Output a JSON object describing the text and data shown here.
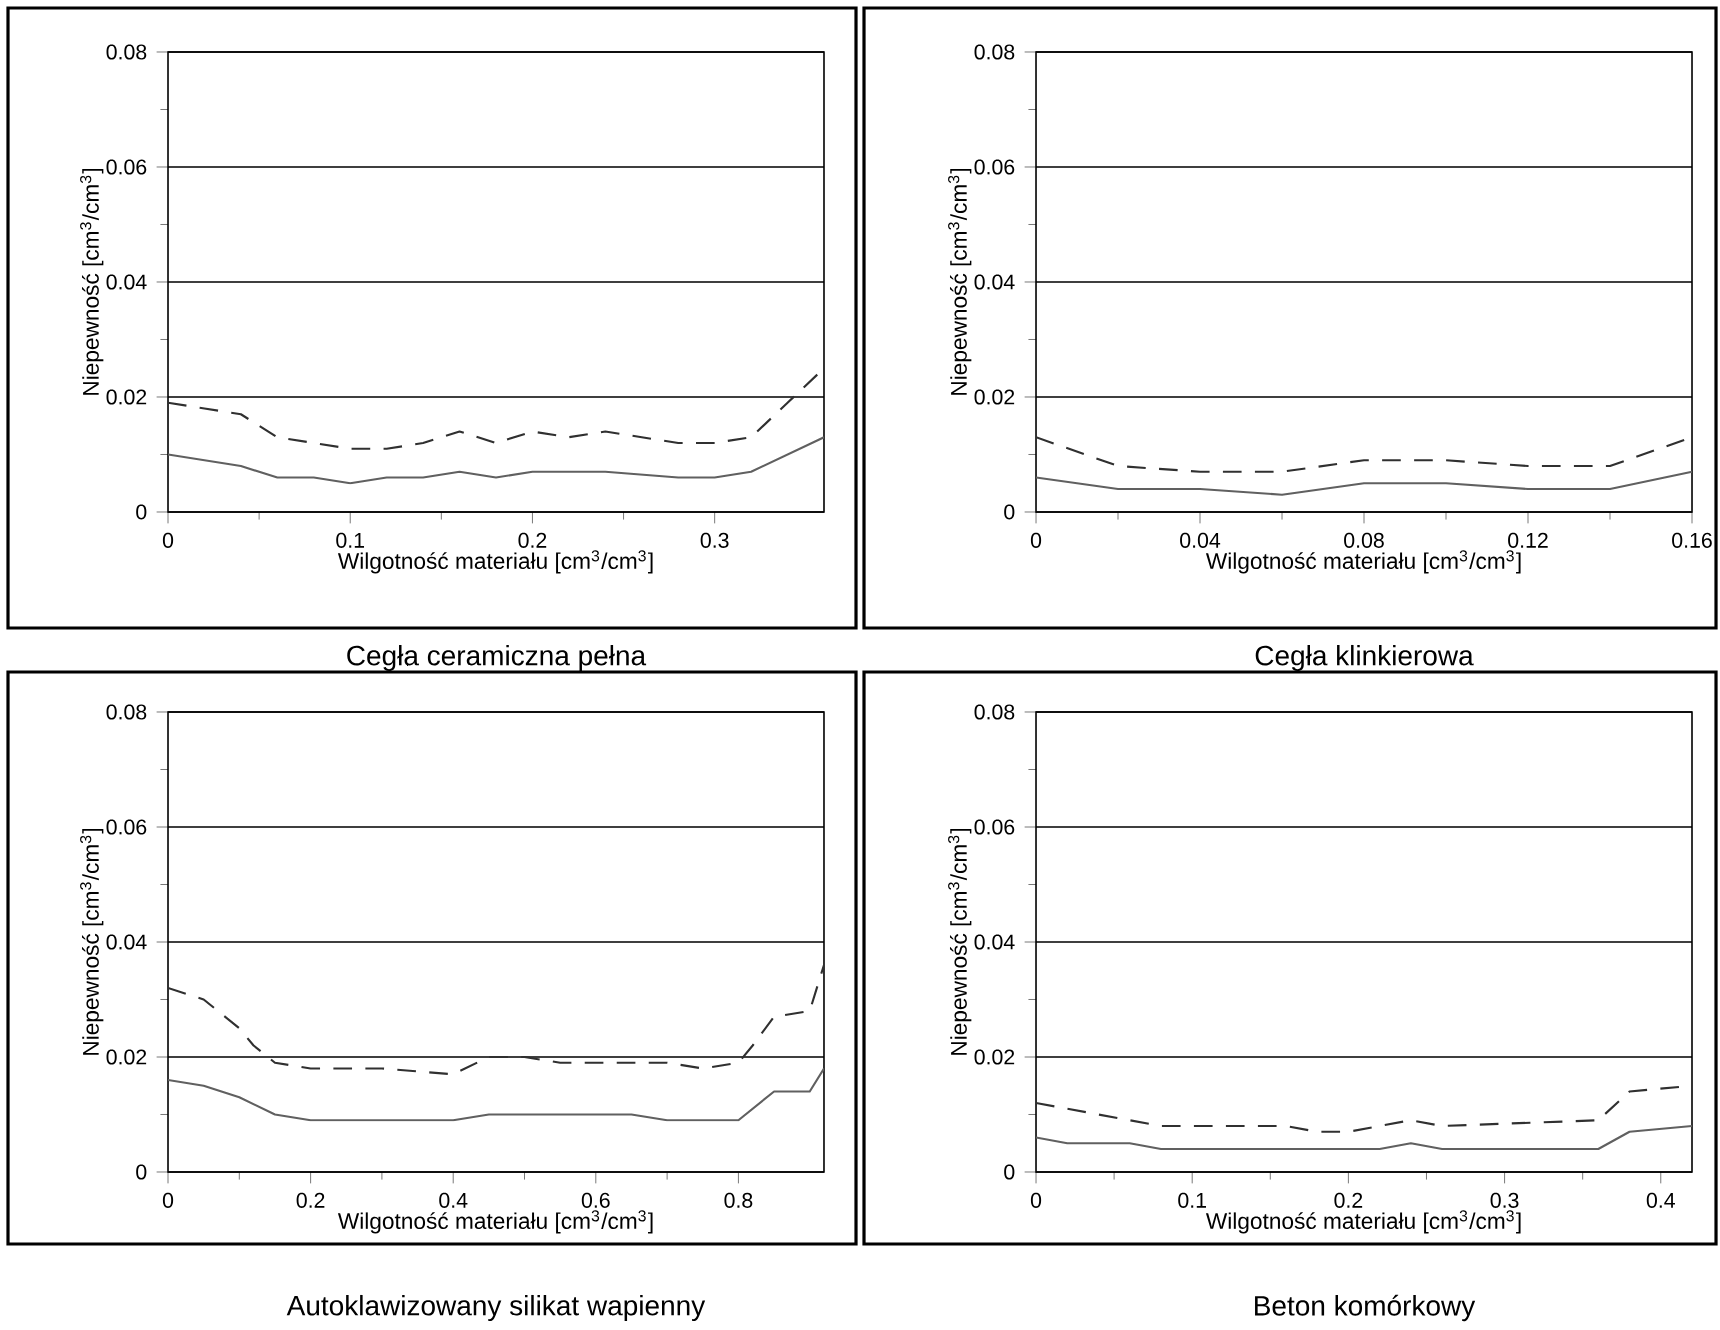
{
  "chart_data": [
    {
      "type": "line",
      "title": "Cegła ceramiczna pełna",
      "xlabel": "Wilgotność materiału [cm$^{3}$/cm$^{3}$]",
      "ylabel": "Niepewność [cm$^{3}$/cm$^{3}$]",
      "xlim": [
        0,
        0.36
      ],
      "xticks": [
        0,
        0.1,
        0.2,
        0.3
      ],
      "ylim": [
        0,
        0.08
      ],
      "yticks": [
        0,
        0.02,
        0.04,
        0.06,
        0.08
      ],
      "grid": "y",
      "series": [
        {
          "color": "#606060",
          "line_style": "solid",
          "x": [
            0,
            0.04,
            0.06,
            0.08,
            0.1,
            0.12,
            0.14,
            0.16,
            0.18,
            0.2,
            0.24,
            0.28,
            0.3,
            0.32,
            0.36
          ],
          "values": [
            0.01,
            0.008,
            0.006,
            0.006,
            0.005,
            0.006,
            0.006,
            0.007,
            0.006,
            0.007,
            0.007,
            0.006,
            0.006,
            0.007,
            0.013
          ]
        },
        {
          "color": "#303030",
          "line_style": "dashed",
          "x": [
            0,
            0.02,
            0.04,
            0.06,
            0.08,
            0.1,
            0.12,
            0.14,
            0.16,
            0.18,
            0.2,
            0.22,
            0.24,
            0.26,
            0.28,
            0.3,
            0.32,
            0.34,
            0.36
          ],
          "values": [
            0.019,
            0.018,
            0.017,
            0.013,
            0.012,
            0.011,
            0.011,
            0.012,
            0.014,
            0.012,
            0.014,
            0.013,
            0.014,
            0.013,
            0.012,
            0.012,
            0.013,
            0.019,
            0.025
          ]
        }
      ]
    },
    {
      "type": "line",
      "title": "Cegła klinkierowa",
      "xlabel": "Wilgotność materiału [cm$^{3}$/cm$^{3}$]",
      "ylabel": "Niepewność [cm$^{3}$/cm$^{3}$]",
      "xlim": [
        0,
        0.16
      ],
      "xticks": [
        0,
        0.04,
        0.08,
        0.12,
        0.16
      ],
      "ylim": [
        0,
        0.08
      ],
      "yticks": [
        0,
        0.02,
        0.04,
        0.06,
        0.08
      ],
      "grid": "y",
      "series": [
        {
          "color": "#606060",
          "line_style": "solid",
          "x": [
            0,
            0.02,
            0.04,
            0.06,
            0.08,
            0.1,
            0.12,
            0.14,
            0.16
          ],
          "values": [
            0.006,
            0.004,
            0.004,
            0.003,
            0.005,
            0.005,
            0.004,
            0.004,
            0.007
          ]
        },
        {
          "color": "#303030",
          "line_style": "dashed",
          "x": [
            0,
            0.02,
            0.04,
            0.06,
            0.08,
            0.1,
            0.12,
            0.14,
            0.16
          ],
          "values": [
            0.013,
            0.008,
            0.007,
            0.007,
            0.009,
            0.009,
            0.008,
            0.008,
            0.013
          ]
        }
      ]
    },
    {
      "type": "line",
      "title": "Autoklawizowany silikat wapienny",
      "xlabel": "Wilgotność materiału [cm$^{3}$/cm$^{3}$]",
      "ylabel": "Niepewność [cm$^{3}$/cm$^{3}$]",
      "xlim": [
        0,
        0.92
      ],
      "xticks": [
        0,
        0.2,
        0.4,
        0.6,
        0.8
      ],
      "ylim": [
        0,
        0.08
      ],
      "yticks": [
        0,
        0.02,
        0.04,
        0.06,
        0.08
      ],
      "grid": "y",
      "series": [
        {
          "color": "#606060",
          "line_style": "solid",
          "x": [
            0,
            0.05,
            0.1,
            0.15,
            0.2,
            0.3,
            0.4,
            0.45,
            0.6,
            0.65,
            0.7,
            0.8,
            0.85,
            0.9,
            0.92
          ],
          "values": [
            0.016,
            0.015,
            0.013,
            0.01,
            0.009,
            0.009,
            0.009,
            0.01,
            0.01,
            0.01,
            0.009,
            0.009,
            0.014,
            0.014,
            0.018
          ]
        },
        {
          "color": "#303030",
          "line_style": "dashed",
          "x": [
            0,
            0.05,
            0.1,
            0.12,
            0.15,
            0.2,
            0.3,
            0.4,
            0.45,
            0.5,
            0.55,
            0.6,
            0.7,
            0.75,
            0.8,
            0.82,
            0.85,
            0.9,
            0.92
          ],
          "values": [
            0.032,
            0.03,
            0.025,
            0.022,
            0.019,
            0.018,
            0.018,
            0.017,
            0.02,
            0.02,
            0.019,
            0.019,
            0.019,
            0.018,
            0.019,
            0.022,
            0.027,
            0.028,
            0.036
          ]
        }
      ]
    },
    {
      "type": "line",
      "title": "Beton komórkowy",
      "xlabel": "Wilgotność materiału [cm$^{3}$/cm$^{3}$]",
      "ylabel": "Niepewność [cm$^{3}$/cm$^{3}$]",
      "xlim": [
        0,
        0.42
      ],
      "xticks": [
        0,
        0.1,
        0.2,
        0.3,
        0.4
      ],
      "ylim": [
        0,
        0.08
      ],
      "yticks": [
        0,
        0.02,
        0.04,
        0.06,
        0.08
      ],
      "grid": "y",
      "series": [
        {
          "color": "#606060",
          "line_style": "solid",
          "x": [
            0,
            0.02,
            0.06,
            0.08,
            0.22,
            0.24,
            0.26,
            0.36,
            0.38,
            0.42
          ],
          "values": [
            0.006,
            0.005,
            0.005,
            0.004,
            0.004,
            0.005,
            0.004,
            0.004,
            0.007,
            0.008
          ]
        },
        {
          "color": "#303030",
          "line_style": "dashed",
          "x": [
            0,
            0.02,
            0.06,
            0.08,
            0.16,
            0.18,
            0.2,
            0.24,
            0.26,
            0.36,
            0.38,
            0.42
          ],
          "values": [
            0.012,
            0.011,
            0.009,
            0.008,
            0.008,
            0.007,
            0.007,
            0.009,
            0.008,
            0.009,
            0.014,
            0.015
          ]
        }
      ]
    }
  ]
}
